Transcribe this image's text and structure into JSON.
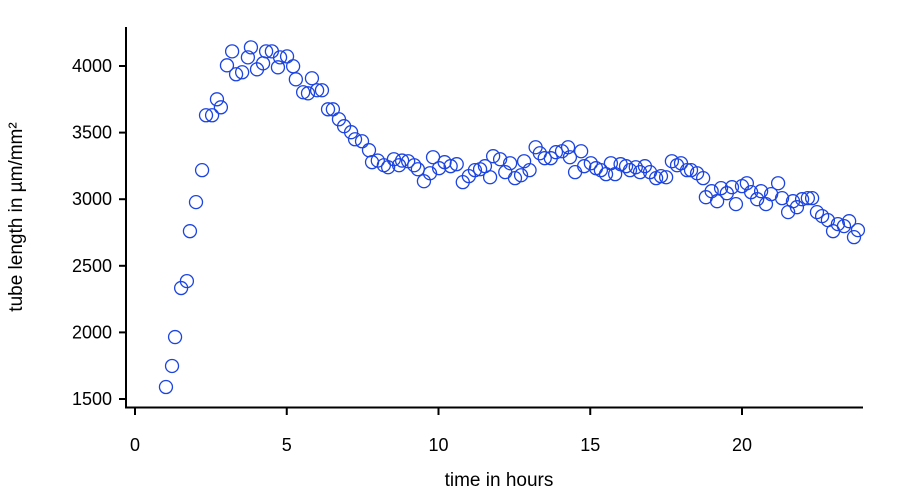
{
  "chart_data": {
    "type": "scatter",
    "title": "",
    "xlabel": "time in hours",
    "ylabel": "tube length in µm/mm²",
    "xlim": [
      -0.3,
      24.1
    ],
    "ylim": [
      1430,
      4290
    ],
    "xticks": [
      0,
      5,
      10,
      15,
      20
    ],
    "yticks": [
      1500,
      2000,
      2500,
      3000,
      3500,
      4000
    ],
    "grid": false,
    "marker": "open-circle",
    "color": "#1c44e0",
    "x": [
      1.02,
      1.22,
      1.32,
      1.52,
      1.71,
      1.81,
      2.01,
      2.21,
      2.34,
      2.54,
      2.7,
      2.83,
      3.03,
      3.2,
      3.33,
      3.53,
      3.72,
      3.82,
      4.02,
      4.22,
      4.32,
      4.51,
      4.71,
      4.78,
      5.01,
      5.21,
      5.3,
      5.54,
      5.7,
      5.83,
      6.0,
      6.16,
      6.36,
      6.52,
      6.72,
      6.89,
      7.12,
      7.25,
      7.48,
      7.71,
      7.81,
      8.0,
      8.2,
      8.34,
      8.53,
      8.7,
      8.8,
      9.0,
      9.2,
      9.32,
      9.52,
      9.72,
      9.82,
      10.02,
      10.2,
      10.4,
      10.6,
      10.8,
      11.0,
      11.2,
      11.37,
      11.53,
      11.7,
      11.8,
      12.03,
      12.2,
      12.36,
      12.52,
      12.72,
      12.82,
      13.0,
      13.2,
      13.34,
      13.5,
      13.7,
      13.87,
      14.07,
      14.27,
      14.33,
      14.5,
      14.7,
      14.8,
      15.02,
      15.19,
      15.35,
      15.52,
      15.68,
      15.82,
      16.0,
      16.18,
      16.31,
      16.5,
      16.64,
      16.8,
      16.97,
      17.17,
      17.33,
      17.5,
      17.69,
      17.86,
      17.99,
      18.19,
      18.32,
      18.52,
      18.72,
      18.81,
      19.0,
      19.18,
      19.31,
      19.5,
      19.67,
      19.8,
      20.0,
      20.16,
      20.3,
      20.5,
      20.63,
      20.79,
      20.96,
      21.19,
      21.32,
      21.52,
      21.68,
      21.81,
      21.98,
      22.17,
      22.31,
      22.47,
      22.64,
      22.83,
      23.0,
      23.16,
      23.36,
      23.53,
      23.69,
      23.82
    ],
    "y": [
      1590,
      1748,
      1965,
      2333,
      2385,
      2760,
      2978,
      3218,
      3630,
      3630,
      3750,
      3690,
      4005,
      4110,
      3938,
      3953,
      4065,
      4140,
      3975,
      4020,
      4110,
      4110,
      3990,
      4065,
      4072,
      3998,
      3900,
      3803,
      3795,
      3908,
      3818,
      3818,
      3675,
      3675,
      3600,
      3548,
      3503,
      3450,
      3435,
      3368,
      3278,
      3290,
      3255,
      3240,
      3300,
      3255,
      3290,
      3285,
      3255,
      3225,
      3135,
      3195,
      3315,
      3233,
      3278,
      3248,
      3263,
      3128,
      3173,
      3218,
      3225,
      3248,
      3165,
      3323,
      3300,
      3203,
      3270,
      3158,
      3180,
      3285,
      3218,
      3390,
      3345,
      3308,
      3308,
      3353,
      3360,
      3390,
      3315,
      3203,
      3360,
      3248,
      3270,
      3233,
      3218,
      3188,
      3270,
      3188,
      3263,
      3248,
      3218,
      3240,
      3203,
      3248,
      3203,
      3158,
      3173,
      3165,
      3285,
      3255,
      3270,
      3218,
      3218,
      3195,
      3158,
      3015,
      3060,
      2985,
      3083,
      3045,
      3090,
      2963,
      3098,
      3120,
      3053,
      3000,
      3060,
      2963,
      3038,
      3120,
      3008,
      2903,
      2985,
      2940,
      3000,
      3008,
      3008,
      2903,
      2873,
      2843,
      2760,
      2813,
      2798,
      2835,
      2715,
      2768
    ]
  }
}
